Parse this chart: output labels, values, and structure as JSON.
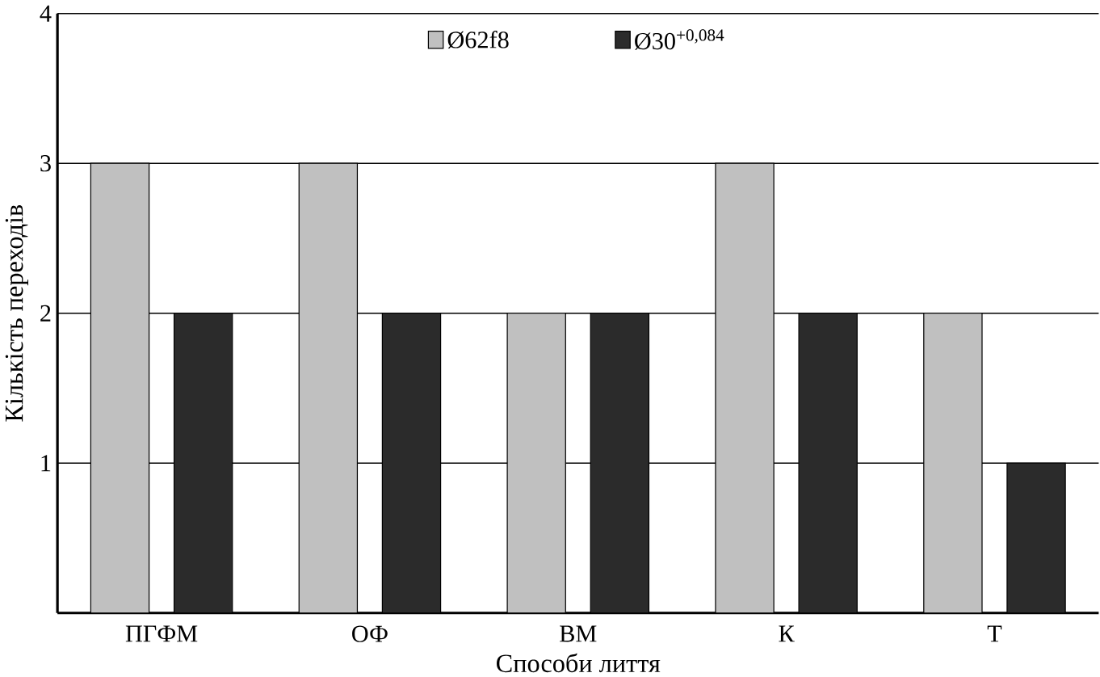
{
  "chart_data": {
    "type": "bar",
    "xlabel": "Способи лиття",
    "ylabel": "Кількість переходів",
    "categories": [
      "ПГФМ",
      "ОФ",
      "ВМ",
      "К",
      "Т"
    ],
    "series": [
      {
        "name": "Ø62f8",
        "color": "#c0c0c0",
        "values": [
          3,
          3,
          2,
          3,
          2
        ]
      },
      {
        "name": "Ø30$^{+0,084}$",
        "color": "#2b2b2b",
        "values": [
          2,
          2,
          2,
          2,
          1
        ]
      }
    ],
    "ylim": [
      0,
      4
    ],
    "yticks": [
      1,
      2,
      3,
      4
    ],
    "grid": "y",
    "legend": "top"
  }
}
